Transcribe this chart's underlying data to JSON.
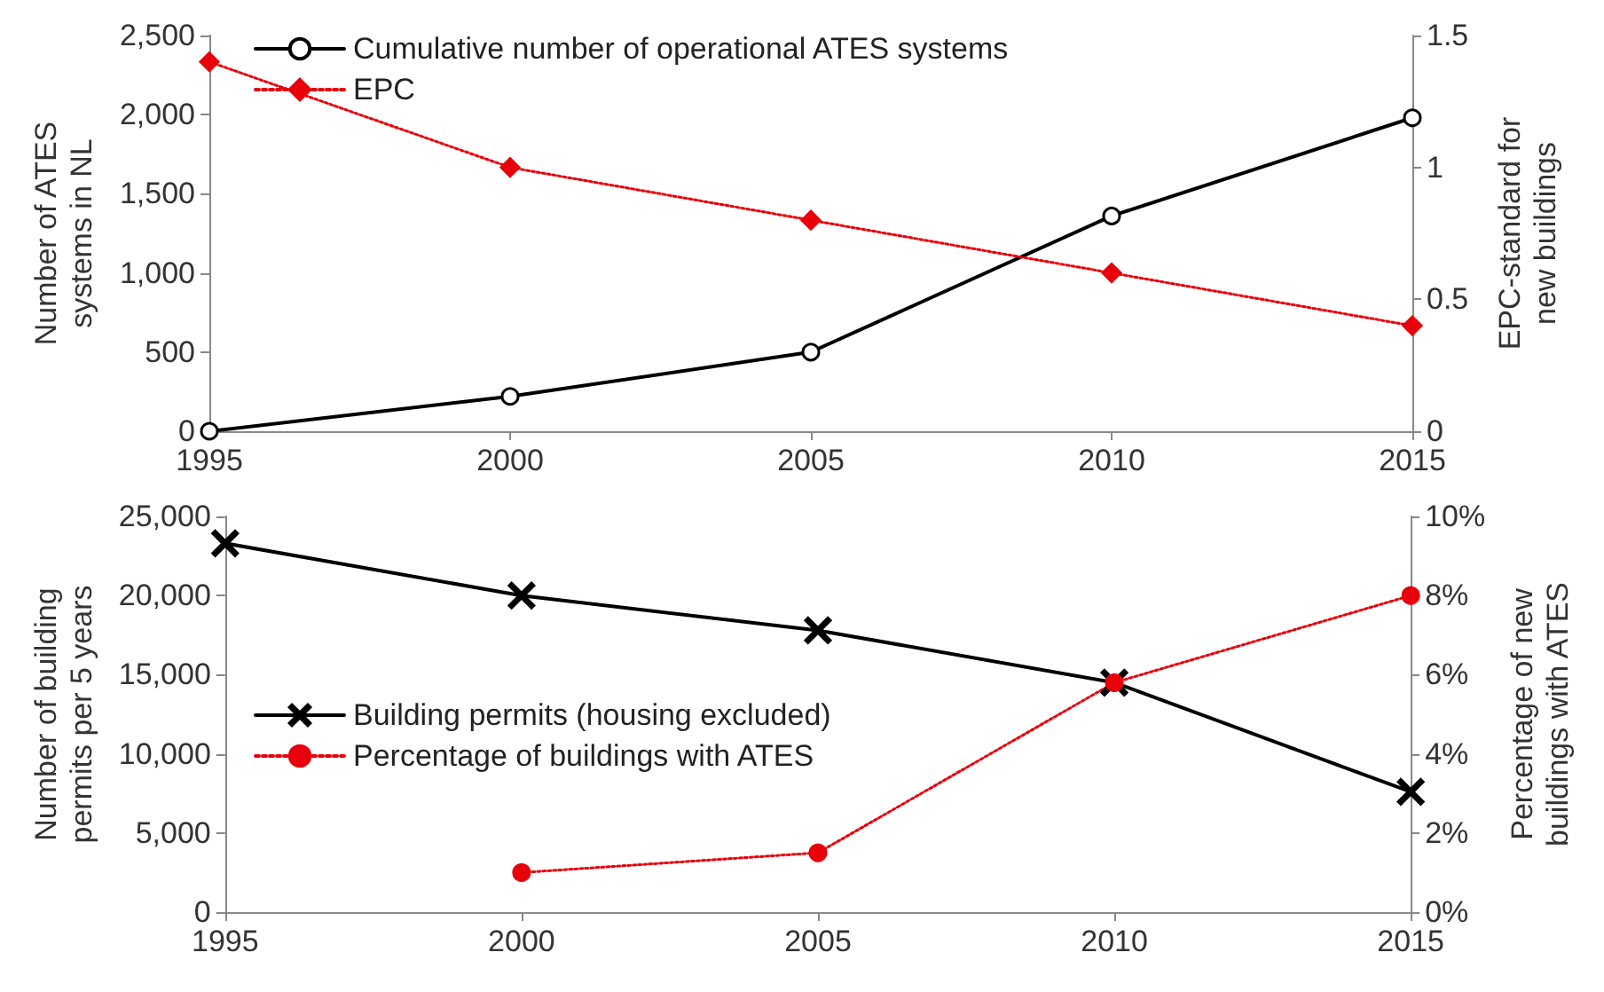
{
  "chart_data": [
    {
      "type": "line",
      "ylabel": "Number of ATES systems in NL",
      "y2label": "EPC-standard for new buildings",
      "x": [
        1995,
        2000,
        2005,
        2010,
        2015
      ],
      "xlim": [
        1995,
        2015
      ],
      "xticks": [
        1995,
        2000,
        2005,
        2010,
        2015
      ],
      "ylim": [
        0,
        2500
      ],
      "yticks": [
        {
          "value": 0,
          "label": "0"
        },
        {
          "value": 500,
          "label": "500"
        },
        {
          "value": 1000,
          "label": "1,000"
        },
        {
          "value": 1500,
          "label": "1,500"
        },
        {
          "value": 2000,
          "label": "2,000"
        },
        {
          "value": 2500,
          "label": "2,500"
        }
      ],
      "y2lim": [
        0,
        1.5
      ],
      "y2ticks": [
        0,
        0.5,
        1,
        1.5
      ],
      "grid": false,
      "legend": "top left",
      "series": [
        {
          "name": "Cumulative number of operational ATES systems",
          "color": "#000000",
          "marker": "circle",
          "line_style": "solid",
          "values": [
            0,
            220,
            500,
            1360,
            1980
          ]
        },
        {
          "name": "EPC",
          "color": "#e8000b",
          "marker": "diamond",
          "line_style": "dotted",
          "axis": "y2",
          "values": [
            1.4,
            1.0,
            0.8,
            0.6,
            0.4
          ]
        }
      ]
    },
    {
      "type": "line",
      "ylabel": "Number of building permits per 5 years",
      "y2label": "Percentage of new buildings with ATES",
      "x": [
        1995,
        2000,
        2005,
        2010,
        2015
      ],
      "xlim": [
        1995,
        2015
      ],
      "xticks": [
        1995,
        2000,
        2005,
        2010,
        2015
      ],
      "ylim": [
        0,
        25000
      ],
      "yticks": [
        {
          "value": 0,
          "label": "0"
        },
        {
          "value": 5000,
          "label": "5,000"
        },
        {
          "value": 10000,
          "label": "10,000"
        },
        {
          "value": 15000,
          "label": "15,000"
        },
        {
          "value": 20000,
          "label": "20,000"
        },
        {
          "value": 25000,
          "label": "25,000"
        }
      ],
      "y2lim": [
        0,
        10
      ],
      "y2ticks": [
        {
          "value": 0,
          "label": "0%"
        },
        {
          "value": 2,
          "label": "2%"
        },
        {
          "value": 4,
          "label": "4%"
        },
        {
          "value": 6,
          "label": "6%"
        },
        {
          "value": 8,
          "label": "8%"
        },
        {
          "value": 10,
          "label": "10%"
        }
      ],
      "grid": false,
      "legend": "left",
      "series": [
        {
          "name": "Building permits (housing excluded)",
          "color": "#000000",
          "marker": "cross",
          "line_style": "solid",
          "values": [
            23300,
            20000,
            17800,
            14500,
            7600
          ]
        },
        {
          "name": "Percentage of buildings with ATES",
          "color": "#e8000b",
          "marker": "circle",
          "line_style": "dotted",
          "axis": "y2",
          "values": [
            null,
            1.0,
            1.5,
            5.8,
            8.0
          ]
        }
      ]
    }
  ]
}
